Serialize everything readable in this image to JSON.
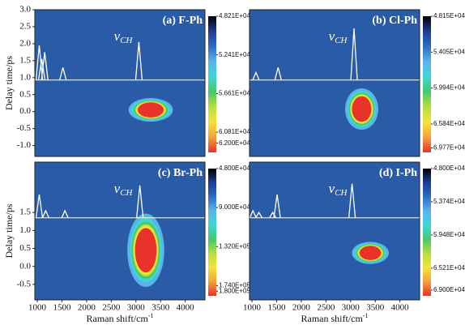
{
  "chart_data": [
    {
      "type": "heatmap",
      "title": "(a) F-Ph",
      "annotation": "ν",
      "annotation_subscript": "CH",
      "ylabel": "Delay time/ps",
      "xlim": [
        950,
        4400
      ],
      "ylim": [
        -1.32,
        3.0
      ],
      "yticks": [
        {
          "value": 3.0,
          "label": "3.0"
        },
        {
          "value": 2.5,
          "label": "2.5"
        },
        {
          "value": 2.0,
          "label": "2.0"
        },
        {
          "value": 1.5,
          "label": "1.5"
        },
        {
          "value": 1.0,
          "label": "1.0"
        },
        {
          "value": 0.5,
          "label": "0.5"
        },
        {
          "value": 0.0,
          "label": "0.0"
        },
        {
          "value": -0.5,
          "label": "-0.5"
        },
        {
          "value": -1.0,
          "label": "-1.0"
        }
      ],
      "zlim": [
        48210,
        63000
      ],
      "zticks": [
        {
          "value": 48210,
          "label": "4.821E+04"
        },
        {
          "value": 52410,
          "label": "5.241E+04"
        },
        {
          "value": 56610,
          "label": "5.661E+04"
        },
        {
          "value": 60810,
          "label": "6.081E+04"
        },
        {
          "value": 62000,
          "label": "6.200E+04"
        }
      ],
      "spectrum": {
        "baseline": 0.93,
        "peaks_x": [
          1040,
          1090,
          1150,
          1520,
          3060
        ],
        "peaks_y": [
          1.95,
          1.55,
          1.75,
          1.3,
          2.05
        ]
      },
      "hotspot": {
        "x": [
          3000,
          3600
        ],
        "y": [
          -0.15,
          0.25
        ]
      }
    },
    {
      "type": "heatmap",
      "title": "(b) Cl-Ph",
      "annotation": "ν",
      "annotation_subscript": "CH",
      "xlim": [
        950,
        4400
      ],
      "ylim": [
        -1.32,
        3.0
      ],
      "zlim": [
        48150,
        70500
      ],
      "zticks": [
        {
          "value": 48150,
          "label": "4.815E+04"
        },
        {
          "value": 54050,
          "label": "5.405E+04"
        },
        {
          "value": 59940,
          "label": "5.994E+04"
        },
        {
          "value": 65840,
          "label": "6.584E+04"
        },
        {
          "value": 69770,
          "label": "6.977E+04"
        }
      ],
      "spectrum": {
        "baseline": 0.93,
        "peaks_x": [
          1080,
          1530,
          3070
        ],
        "peaks_y": [
          1.15,
          1.3,
          2.45
        ]
      },
      "hotspot": {
        "x": [
          3000,
          3450
        ],
        "y": [
          -0.3,
          0.45
        ]
      }
    },
    {
      "type": "heatmap",
      "title": "(c) Br-Ph",
      "annotation": "ν",
      "annotation_subscript": "CH",
      "ylabel": "Delay time/ps",
      "xlabel": "Raman shift/cm",
      "xlabel_superscript": "-1",
      "xlim": [
        950,
        4400
      ],
      "ylim": [
        -0.93,
        2.9
      ],
      "xticks": [
        1000,
        1500,
        2000,
        2500,
        3000,
        3500,
        4000
      ],
      "yticks": [
        {
          "value": 1.5,
          "label": "1.5"
        },
        {
          "value": 1.0,
          "label": "1.0"
        },
        {
          "value": 0.5,
          "label": "0.5"
        },
        {
          "value": 0.0,
          "label": "0.0"
        },
        {
          "value": -0.5,
          "label": "-0.5"
        }
      ],
      "zlim": [
        48000,
        185000
      ],
      "zticks": [
        {
          "value": 48000,
          "label": "4.800E+04"
        },
        {
          "value": 90000,
          "label": "9.000E+04"
        },
        {
          "value": 132000,
          "label": "1.320E+05"
        },
        {
          "value": 174000,
          "label": "1.740E+05"
        },
        {
          "value": 180000,
          "label": "1.800E+05"
        }
      ],
      "spectrum": {
        "baseline": 1.35,
        "peaks_x": [
          1040,
          1170,
          1560,
          3080
        ],
        "peaks_y": [
          2.0,
          1.55,
          1.55,
          2.25
        ]
      },
      "hotspot": {
        "x": [
          2950,
          3450
        ],
        "y": [
          -0.2,
          1.1
        ]
      }
    },
    {
      "type": "heatmap",
      "title": "(d) I-Ph",
      "annotation": "ν",
      "annotation_subscript": "CH",
      "xlabel": "Raman shift/cm",
      "xlabel_superscript": "-1",
      "xlim": [
        950,
        4400
      ],
      "ylim": [
        -0.93,
        2.9
      ],
      "xticks": [
        1000,
        1500,
        2000,
        2500,
        3000,
        3500,
        4000
      ],
      "zlim": [
        48000,
        70000
      ],
      "zticks": [
        {
          "value": 48000,
          "label": "4.800E+04"
        },
        {
          "value": 53740,
          "label": "5.374E+04"
        },
        {
          "value": 59480,
          "label": "5.948E+04"
        },
        {
          "value": 65210,
          "label": "6.521E+04"
        },
        {
          "value": 69000,
          "label": "6.900E+04"
        }
      ],
      "spectrum": {
        "baseline": 1.35,
        "peaks_x": [
          1020,
          1140,
          1420,
          1510,
          3030
        ],
        "peaks_y": [
          1.55,
          1.5,
          1.5,
          2.0,
          2.3
        ]
      },
      "hotspot": {
        "x": [
          3150,
          3650
        ],
        "y": [
          0.2,
          0.55
        ]
      }
    }
  ],
  "colors": [
    "#000000",
    "#1c3c96",
    "#2d6cc4",
    "#5ab4ea",
    "#3fd6d6",
    "#46c86a",
    "#b6e03c",
    "#f5e23c",
    "#f5a23c",
    "#e8332a"
  ],
  "background": "#2a5ba6"
}
